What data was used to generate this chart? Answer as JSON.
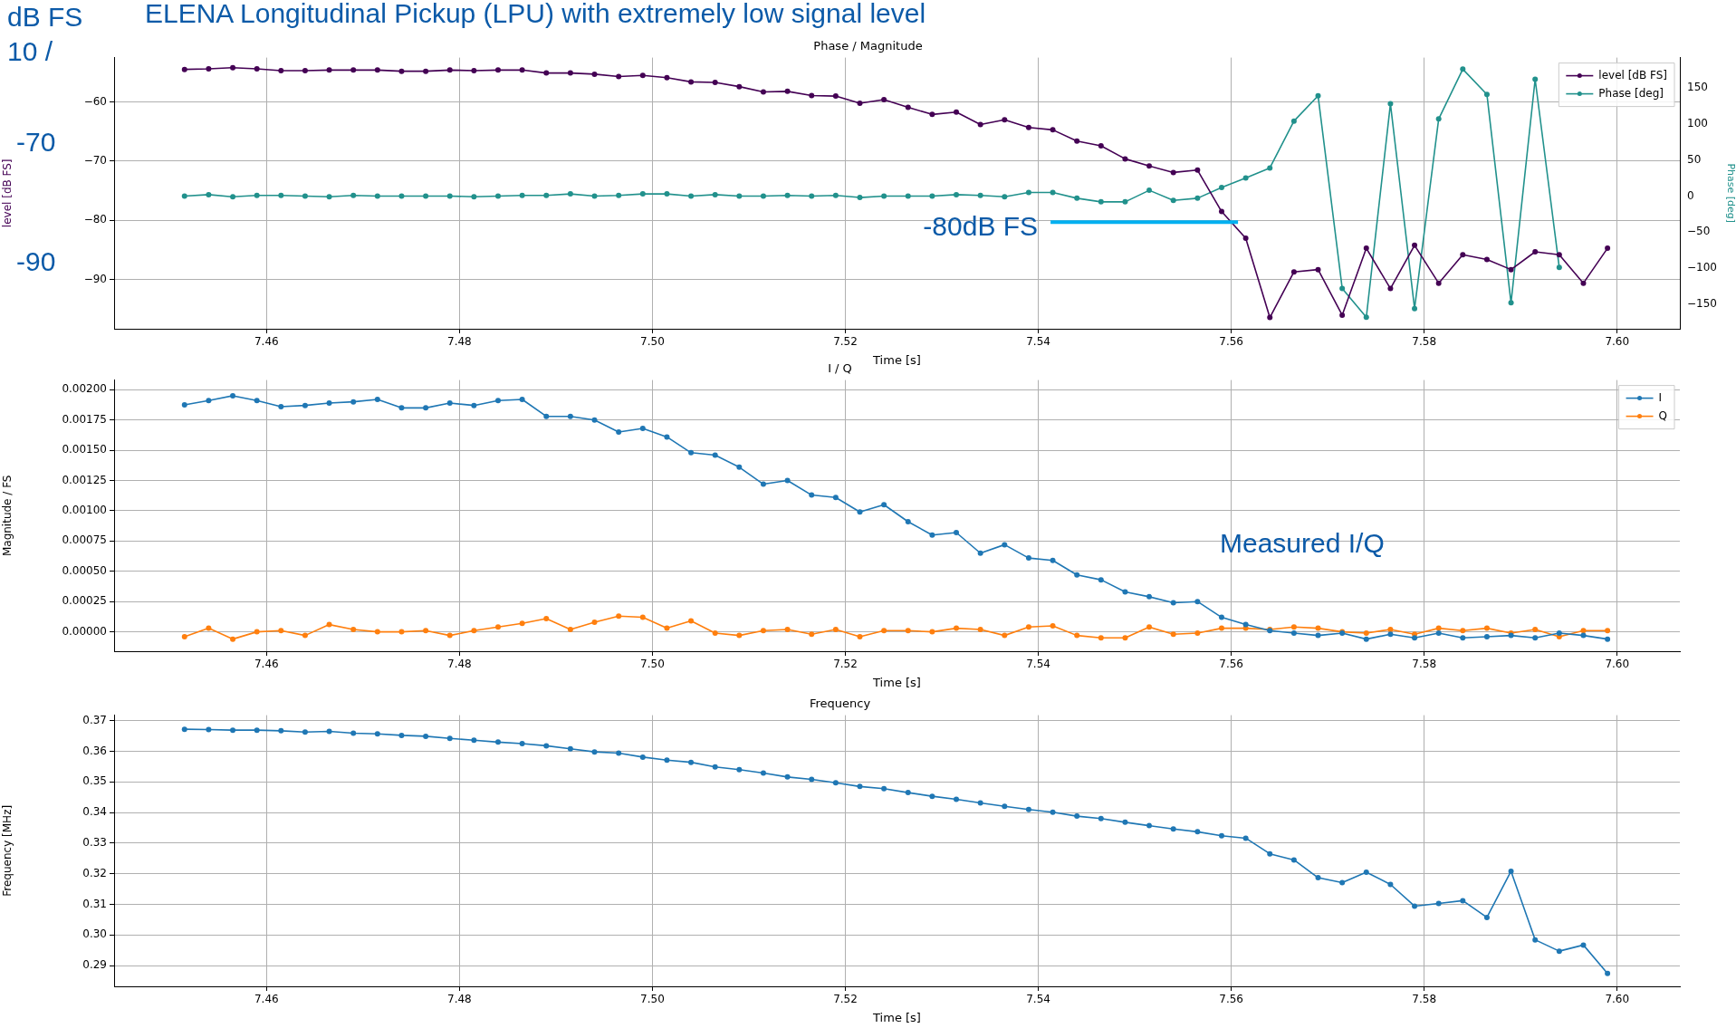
{
  "chart_data": [
    {
      "type": "line",
      "title": "Phase / Magnitude",
      "xlabel": "Time [s]",
      "ylabel": "level [dB FS]",
      "y2label": "Phase [deg]",
      "grid": true,
      "legend": "top right",
      "marker": "circle",
      "x": [
        7.4515,
        7.454,
        7.4565,
        7.459,
        7.4615,
        7.464,
        7.4665,
        7.469,
        7.4715,
        7.474,
        7.4765,
        7.479,
        7.4815,
        7.484,
        7.4865,
        7.489,
        7.4915,
        7.494,
        7.4965,
        7.499,
        7.5015,
        7.504,
        7.5065,
        7.509,
        7.5115,
        7.514,
        7.5165,
        7.519,
        7.5215,
        7.524,
        7.5265,
        7.529,
        7.5315,
        7.534,
        7.5365,
        7.539,
        7.5415,
        7.544,
        7.5465,
        7.549,
        7.5515,
        7.554,
        7.5565,
        7.559,
        7.5615,
        7.564,
        7.5665,
        7.569,
        7.5715,
        7.574,
        7.5765,
        7.579,
        7.5815,
        7.584,
        7.5865,
        7.589,
        7.5915,
        7.594,
        7.5965,
        7.599
      ],
      "xlim": [
        7.4442,
        7.6065
      ],
      "xticks": [
        {
          "value": 7.46,
          "label": "7.46"
        },
        {
          "value": 7.48,
          "label": "7.48"
        },
        {
          "value": 7.5,
          "label": "7.50"
        },
        {
          "value": 7.52,
          "label": "7.52"
        },
        {
          "value": 7.54,
          "label": "7.54"
        },
        {
          "value": 7.56,
          "label": "7.56"
        },
        {
          "value": 7.58,
          "label": "7.58"
        },
        {
          "value": 7.6,
          "label": "7.60"
        }
      ],
      "ylim": [
        -98.3,
        -52.5
      ],
      "yticks": [
        {
          "value": -90,
          "label": "−90"
        },
        {
          "value": -80,
          "label": "−80"
        },
        {
          "value": -70,
          "label": "−70"
        },
        {
          "value": -60,
          "label": "−60"
        }
      ],
      "y2lim": [
        -184,
        192
      ],
      "y2ticks": [
        {
          "value": -150,
          "label": "−150"
        },
        {
          "value": -100,
          "label": "−100"
        },
        {
          "value": -50,
          "label": "−50"
        },
        0,
        50,
        100,
        150
      ],
      "series": [
        {
          "name": "level [dB FS]",
          "color": "#440154",
          "values": [
            -54.5,
            -54.4,
            -54.2,
            -54.4,
            -54.7,
            -54.7,
            -54.6,
            -54.6,
            -54.6,
            -54.8,
            -54.8,
            -54.6,
            -54.7,
            -54.6,
            -54.6,
            -55.1,
            -55.1,
            -55.3,
            -55.7,
            -55.5,
            -55.9,
            -56.6,
            -56.7,
            -57.4,
            -58.3,
            -58.2,
            -58.9,
            -59.0,
            -60.2,
            -59.6,
            -60.9,
            -62.1,
            -61.7,
            -63.8,
            -63.0,
            -64.3,
            -64.7,
            -66.6,
            -67.4,
            -69.6,
            -70.8,
            -71.9,
            -71.5,
            -78.5,
            -83.0,
            -96.4,
            -88.7,
            -88.3,
            -96.0,
            -84.7,
            -91.5,
            -84.2,
            -90.6,
            -85.8,
            -86.6,
            -88.3,
            -85.3,
            -85.8,
            -90.6,
            -84.7
          ]
        },
        {
          "name": "Phase [deg]",
          "color": "#21918c",
          "axis": "y2",
          "values": [
            0,
            2,
            -1,
            1,
            1,
            0,
            -1,
            1,
            0,
            0,
            0,
            0,
            -1,
            0,
            1,
            1,
            3,
            0,
            1,
            3,
            3,
            0,
            2,
            0,
            0,
            1,
            0,
            1,
            -2,
            0,
            0,
            0,
            2,
            1,
            -1,
            5,
            5,
            -3,
            -8,
            -8,
            8,
            -6,
            -3,
            12,
            25,
            39,
            104,
            139,
            -128,
            -168,
            128,
            -156,
            107,
            176,
            141,
            -148,
            162,
            -99,
            null,
            null
          ]
        }
      ],
      "annotations": [
        "ELENA Longitudinal Pickup (LPU) with extremely low signal level",
        "dB FS",
        "10 /",
        "-70",
        "-90",
        {
          "text": "-80dB FS",
          "x": 7.5607,
          "y": -80.3
        }
      ]
    },
    {
      "type": "line",
      "title": "I / Q",
      "xlabel": "Time [s]",
      "ylabel": "Magnitude / FS",
      "grid": true,
      "legend": "top right",
      "marker": "circle",
      "x": [
        7.4515,
        7.454,
        7.4565,
        7.459,
        7.4615,
        7.464,
        7.4665,
        7.469,
        7.4715,
        7.474,
        7.4765,
        7.479,
        7.4815,
        7.484,
        7.4865,
        7.489,
        7.4915,
        7.494,
        7.4965,
        7.499,
        7.5015,
        7.504,
        7.5065,
        7.509,
        7.5115,
        7.514,
        7.5165,
        7.519,
        7.5215,
        7.524,
        7.5265,
        7.529,
        7.5315,
        7.534,
        7.5365,
        7.539,
        7.5415,
        7.544,
        7.5465,
        7.549,
        7.5515,
        7.554,
        7.5565,
        7.559,
        7.5615,
        7.564,
        7.5665,
        7.569,
        7.5715,
        7.574,
        7.5765,
        7.579,
        7.5815,
        7.584,
        7.5865,
        7.589,
        7.5915,
        7.594,
        7.5965,
        7.599
      ],
      "xlim": [
        7.4442,
        7.6065
      ],
      "xticks": [
        {
          "value": 7.46,
          "label": "7.46"
        },
        {
          "value": 7.48,
          "label": "7.48"
        },
        {
          "value": 7.5,
          "label": "7.50"
        },
        {
          "value": 7.52,
          "label": "7.52"
        },
        {
          "value": 7.54,
          "label": "7.54"
        },
        {
          "value": 7.56,
          "label": "7.56"
        },
        {
          "value": 7.58,
          "label": "7.58"
        },
        {
          "value": 7.6,
          "label": "7.60"
        }
      ],
      "ylim": [
        -0.00016,
        0.00208
      ],
      "yticks": [
        {
          "value": 0,
          "label": "0.00000"
        },
        {
          "value": 0.00025,
          "label": "0.00025"
        },
        {
          "value": 0.0005,
          "label": "0.00050"
        },
        {
          "value": 0.00075,
          "label": "0.00075"
        },
        {
          "value": 0.001,
          "label": "0.00100"
        },
        {
          "value": 0.00125,
          "label": "0.00125"
        },
        {
          "value": 0.0015,
          "label": "0.00150"
        },
        {
          "value": 0.00175,
          "label": "0.00175"
        },
        {
          "value": 0.002,
          "label": "0.00200"
        }
      ],
      "series": [
        {
          "name": "I",
          "color": "#1f77b4",
          "values": [
            0.001875,
            0.00191,
            0.00195,
            0.00191,
            0.00186,
            0.00187,
            0.00189,
            0.0019,
            0.00192,
            0.00185,
            0.00185,
            0.00189,
            0.00187,
            0.00191,
            0.00192,
            0.00178,
            0.00178,
            0.00175,
            0.00165,
            0.00168,
            0.00161,
            0.00148,
            0.00146,
            0.00136,
            0.00122,
            0.00125,
            0.00113,
            0.00111,
            0.00099,
            0.00105,
            0.00091,
            0.0008,
            0.00082,
            0.00065,
            0.00072,
            0.00061,
            0.00059,
            0.00047,
            0.00043,
            0.00033,
            0.00029,
            0.00024,
            0.00025,
            0.00012,
            6e-05,
            1e-05,
            -1e-05,
            -3e-05,
            -1e-05,
            -6e-05,
            -2e-05,
            -5e-05,
            -1e-05,
            -5e-05,
            -4e-05,
            -3e-05,
            -5e-05,
            -1e-05,
            -3e-05,
            -6e-05
          ]
        },
        {
          "name": "Q",
          "color": "#ff7f0e",
          "values": [
            -4e-05,
            3e-05,
            -6e-05,
            0,
            1e-05,
            -3e-05,
            6e-05,
            2e-05,
            0,
            0,
            1e-05,
            -3e-05,
            1e-05,
            4e-05,
            7e-05,
            0.00011,
            2e-05,
            8e-05,
            0.00013,
            0.00012,
            3e-05,
            9e-05,
            -1e-05,
            -3e-05,
            1e-05,
            2e-05,
            -2e-05,
            2e-05,
            -4e-05,
            1e-05,
            1e-05,
            0,
            3e-05,
            2e-05,
            -3e-05,
            4e-05,
            5e-05,
            -3e-05,
            -5e-05,
            -5e-05,
            4e-05,
            -2e-05,
            -1e-05,
            3e-05,
            3e-05,
            2e-05,
            4e-05,
            3e-05,
            0,
            -1e-05,
            2e-05,
            -2e-05,
            3e-05,
            1e-05,
            3e-05,
            -1e-05,
            2e-05,
            -4e-05,
            1e-05,
            1e-05
          ]
        }
      ],
      "annotations": [
        "Measured I/Q"
      ]
    },
    {
      "type": "line",
      "title": "Frequency",
      "xlabel": "Time [s]",
      "ylabel": "Frequency [MHz]",
      "grid": true,
      "marker": "circle",
      "x": [
        7.4515,
        7.454,
        7.4565,
        7.459,
        7.4615,
        7.464,
        7.4665,
        7.469,
        7.4715,
        7.474,
        7.4765,
        7.479,
        7.4815,
        7.484,
        7.4865,
        7.489,
        7.4915,
        7.494,
        7.4965,
        7.499,
        7.5015,
        7.504,
        7.5065,
        7.509,
        7.5115,
        7.514,
        7.5165,
        7.519,
        7.5215,
        7.524,
        7.5265,
        7.529,
        7.5315,
        7.534,
        7.5365,
        7.539,
        7.5415,
        7.544,
        7.5465,
        7.549,
        7.5515,
        7.554,
        7.5565,
        7.559,
        7.5615,
        7.564,
        7.5665,
        7.569,
        7.5715,
        7.574,
        7.5765,
        7.579,
        7.5815,
        7.584,
        7.5865,
        7.589,
        7.5915,
        7.594,
        7.5965,
        7.599
      ],
      "xlim": [
        7.4442,
        7.6065
      ],
      "xticks": [
        {
          "value": 7.46,
          "label": "7.46"
        },
        {
          "value": 7.48,
          "label": "7.48"
        },
        {
          "value": 7.5,
          "label": "7.50"
        },
        {
          "value": 7.52,
          "label": "7.52"
        },
        {
          "value": 7.54,
          "label": "7.54"
        },
        {
          "value": 7.56,
          "label": "7.56"
        },
        {
          "value": 7.58,
          "label": "7.58"
        },
        {
          "value": 7.6,
          "label": "7.60"
        }
      ],
      "ylim": [
        0.2832,
        0.3718
      ],
      "yticks": [
        0.29,
        {
          "value": 0.3,
          "label": "0.30"
        },
        0.31,
        0.32,
        0.33,
        0.34,
        0.35,
        0.36,
        0.37
      ],
      "series": [
        {
          "color": "#1f77b4",
          "values": [
            0.3672,
            0.3671,
            0.3669,
            0.3669,
            0.3667,
            0.3663,
            0.3665,
            0.3659,
            0.3657,
            0.3652,
            0.3649,
            0.3642,
            0.3636,
            0.363,
            0.3625,
            0.3618,
            0.3608,
            0.3598,
            0.3594,
            0.3581,
            0.3571,
            0.3564,
            0.3549,
            0.354,
            0.3529,
            0.3516,
            0.3508,
            0.3497,
            0.3485,
            0.3478,
            0.3465,
            0.3453,
            0.3443,
            0.3431,
            0.342,
            0.341,
            0.3401,
            0.3388,
            0.338,
            0.3368,
            0.3357,
            0.3346,
            0.3337,
            0.3324,
            0.3316,
            0.3265,
            0.3245,
            0.3187,
            0.3171,
            0.3205,
            0.3165,
            0.3094,
            0.3103,
            0.3112,
            0.3057,
            0.3208,
            0.2984,
            0.2947,
            0.2967,
            0.2874
          ]
        }
      ]
    }
  ]
}
